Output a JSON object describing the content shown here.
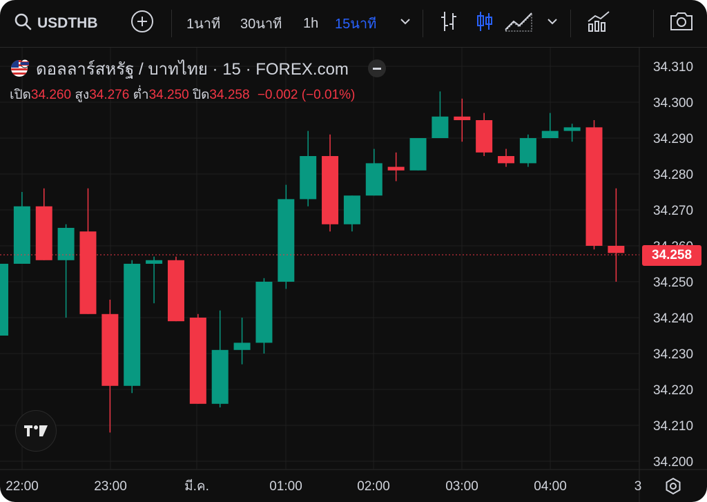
{
  "toolbar": {
    "symbol": "USDTHB",
    "intervals": [
      "1นาที",
      "30นาที",
      "1h",
      "15นาที"
    ],
    "active_interval": "15นาที"
  },
  "legend": {
    "title": "ดอลลาร์สหรัฐ / บาทไทย · 15 · FOREX.com",
    "open_label": "เปิด",
    "open": "34.260",
    "high_label": "สูง",
    "high": "34.276",
    "low_label": "ต่ำ",
    "low": "34.250",
    "close_label": "ปิด",
    "close": "34.258",
    "change": "−0.002 (−0.01%)"
  },
  "current_price": "34.258",
  "x_labels": [
    "22:00",
    "23:00",
    "มี.ค.",
    "01:00",
    "02:00",
    "03:00",
    "04:00",
    "3"
  ],
  "colors": {
    "up": "#089981",
    "down": "#f23645",
    "background": "#0f0f0f",
    "accent": "#2962ff"
  },
  "chart_data": {
    "type": "candlestick",
    "ylim": [
      34.2,
      34.31
    ],
    "y_ticks": [
      "34.200",
      "34.210",
      "34.220",
      "34.230",
      "34.240",
      "34.250",
      "34.260",
      "34.270",
      "34.280",
      "34.290",
      "34.300",
      "34.310"
    ],
    "candles": [
      {
        "o": 34.235,
        "h": 34.255,
        "l": 34.235,
        "c": 34.255
      },
      {
        "o": 34.255,
        "h": 34.275,
        "l": 34.255,
        "c": 34.271
      },
      {
        "o": 34.271,
        "h": 34.276,
        "l": 34.256,
        "c": 34.256
      },
      {
        "o": 34.256,
        "h": 34.266,
        "l": 34.24,
        "c": 34.265
      },
      {
        "o": 34.264,
        "h": 34.276,
        "l": 34.241,
        "c": 34.241
      },
      {
        "o": 34.241,
        "h": 34.245,
        "l": 34.208,
        "c": 34.221
      },
      {
        "o": 34.221,
        "h": 34.256,
        "l": 34.219,
        "c": 34.255
      },
      {
        "o": 34.255,
        "h": 34.257,
        "l": 34.244,
        "c": 34.256
      },
      {
        "o": 34.256,
        "h": 34.257,
        "l": 34.239,
        "c": 34.239
      },
      {
        "o": 34.24,
        "h": 34.241,
        "l": 34.216,
        "c": 34.216
      },
      {
        "o": 34.216,
        "h": 34.242,
        "l": 34.215,
        "c": 34.231
      },
      {
        "o": 34.231,
        "h": 34.24,
        "l": 34.227,
        "c": 34.233
      },
      {
        "o": 34.233,
        "h": 34.251,
        "l": 34.23,
        "c": 34.25
      },
      {
        "o": 34.25,
        "h": 34.277,
        "l": 34.248,
        "c": 34.273
      },
      {
        "o": 34.273,
        "h": 34.292,
        "l": 34.271,
        "c": 34.285
      },
      {
        "o": 34.285,
        "h": 34.291,
        "l": 34.264,
        "c": 34.266
      },
      {
        "o": 34.266,
        "h": 34.274,
        "l": 34.264,
        "c": 34.274
      },
      {
        "o": 34.274,
        "h": 34.287,
        "l": 34.274,
        "c": 34.283
      },
      {
        "o": 34.282,
        "h": 34.286,
        "l": 34.278,
        "c": 34.281
      },
      {
        "o": 34.281,
        "h": 34.29,
        "l": 34.281,
        "c": 34.29
      },
      {
        "o": 34.29,
        "h": 34.303,
        "l": 34.29,
        "c": 34.296
      },
      {
        "o": 34.296,
        "h": 34.301,
        "l": 34.289,
        "c": 34.295
      },
      {
        "o": 34.295,
        "h": 34.297,
        "l": 34.285,
        "c": 34.286
      },
      {
        "o": 34.285,
        "h": 34.287,
        "l": 34.282,
        "c": 34.283
      },
      {
        "o": 34.283,
        "h": 34.291,
        "l": 34.282,
        "c": 34.29
      },
      {
        "o": 34.29,
        "h": 34.297,
        "l": 34.29,
        "c": 34.292
      },
      {
        "o": 34.292,
        "h": 34.294,
        "l": 34.289,
        "c": 34.293
      },
      {
        "o": 34.293,
        "h": 34.295,
        "l": 34.259,
        "c": 34.26
      },
      {
        "o": 34.26,
        "h": 34.276,
        "l": 34.25,
        "c": 34.258
      }
    ]
  }
}
